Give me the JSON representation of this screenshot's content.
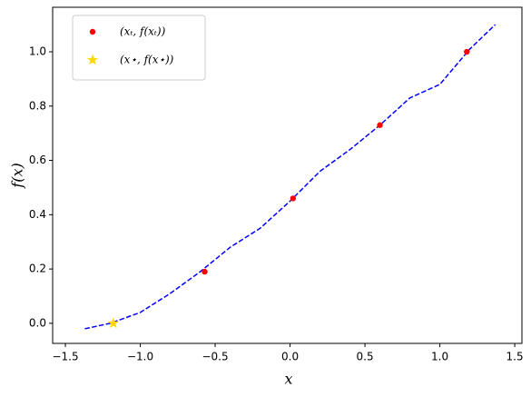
{
  "chart_data": {
    "type": "line",
    "xlabel": "x",
    "ylabel": "f(x)",
    "xlim": [
      -1.585,
      1.548
    ],
    "ylim": [
      -0.074,
      1.164
    ],
    "xticks": [
      {
        "value": -1.5,
        "label": "−1.5"
      },
      {
        "value": -1.0,
        "label": "−1.0"
      },
      {
        "value": -0.5,
        "label": "−0.5"
      },
      {
        "value": 0,
        "label": "0.0"
      },
      0.5,
      {
        "value": 1,
        "label": "1.0"
      },
      1.5
    ],
    "yticks": [
      {
        "value": 0,
        "label": "0.0"
      },
      0.2,
      0.4,
      0.6,
      0.8,
      {
        "value": 1,
        "label": "1.0"
      }
    ],
    "legend": "upper left",
    "series": [
      {
        "kind": "line",
        "color": "#0000ff",
        "dashed": true,
        "x": [
          -1.37,
          -1.2,
          -1.0,
          -0.8,
          -0.6,
          -0.4,
          -0.2,
          0.0,
          0.2,
          0.4,
          0.6,
          0.8,
          1.0,
          1.2,
          1.37
        ],
        "values": [
          -0.02,
          0.0,
          0.04,
          0.11,
          0.19,
          0.28,
          0.35,
          0.45,
          0.56,
          0.64,
          0.73,
          0.83,
          0.88,
          1.01,
          1.1
        ]
      },
      {
        "kind": "scatter",
        "marker": "circle",
        "name": "(xₜ, f(xₜ))",
        "color": "#ff0000",
        "x": [
          -0.57,
          0.02,
          0.6,
          1.18
        ],
        "values": [
          0.19,
          0.46,
          0.73,
          1.0
        ]
      },
      {
        "kind": "scatter",
        "marker": "star",
        "name": "(x⋆, f(x⋆))",
        "color": "#ffd700",
        "x": [
          -1.18
        ],
        "values": [
          0.0
        ]
      }
    ]
  }
}
